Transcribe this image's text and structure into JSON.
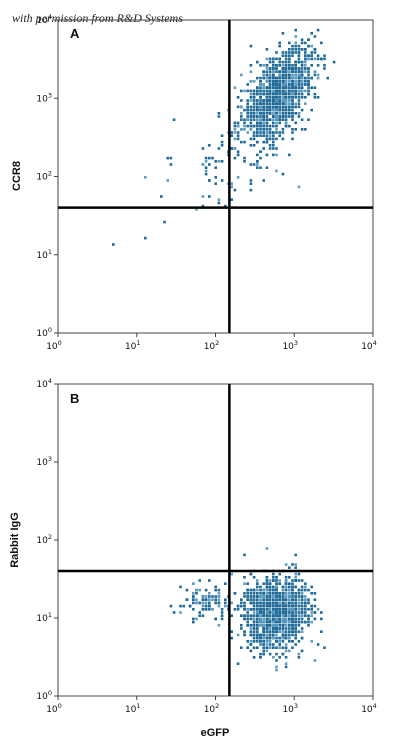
{
  "watermark": "with permission from R&D Systems",
  "colors": {
    "dot": "#1f6a96",
    "dot_light": "#5f9cc0",
    "frame": "#444444",
    "gate": "#000000"
  },
  "chart_data": [
    {
      "type": "scatter",
      "panel": "A",
      "xlabel": "",
      "ylabel": "CCR8",
      "xscale": "log",
      "yscale": "log",
      "xlim": [
        1,
        10000
      ],
      "ylim": [
        1,
        10000
      ],
      "gate": {
        "x": 150,
        "y": 40
      },
      "x_ticks": [
        {
          "base": "10",
          "exp": "0"
        },
        {
          "base": "10",
          "exp": "1"
        },
        {
          "base": "10",
          "exp": "2"
        },
        {
          "base": "10",
          "exp": "3"
        },
        {
          "base": "10",
          "exp": "4"
        }
      ],
      "y_ticks": [
        {
          "base": "10",
          "exp": "0"
        },
        {
          "base": "10",
          "exp": "1"
        },
        {
          "base": "10",
          "exp": "2"
        },
        {
          "base": "10",
          "exp": "3"
        },
        {
          "base": "10",
          "exp": "4"
        }
      ],
      "populations": [
        {
          "cx": 600,
          "cy": 1200,
          "sx_log": 0.22,
          "sy_log": 0.28,
          "rho": 0.55,
          "n": 1300
        },
        {
          "cx": 150,
          "cy": 150,
          "sx_log": 0.45,
          "sy_log": 0.35,
          "rho": 0.5,
          "n": 90
        }
      ]
    },
    {
      "type": "scatter",
      "panel": "B",
      "xlabel": "eGFP",
      "ylabel": "Rabbit IgG",
      "xscale": "log",
      "yscale": "log",
      "xlim": [
        1,
        10000
      ],
      "ylim": [
        1,
        10000
      ],
      "gate": {
        "x": 150,
        "y": 40
      },
      "x_ticks": [
        {
          "base": "10",
          "exp": "0"
        },
        {
          "base": "10",
          "exp": "1"
        },
        {
          "base": "10",
          "exp": "2"
        },
        {
          "base": "10",
          "exp": "3"
        },
        {
          "base": "10",
          "exp": "4"
        }
      ],
      "y_ticks": [
        {
          "base": "10",
          "exp": "0"
        },
        {
          "base": "10",
          "exp": "1"
        },
        {
          "base": "10",
          "exp": "2"
        },
        {
          "base": "10",
          "exp": "3"
        },
        {
          "base": "10",
          "exp": "4"
        }
      ],
      "populations": [
        {
          "cx": 550,
          "cy": 12,
          "sx_log": 0.2,
          "sy_log": 0.22,
          "rho": 0.1,
          "n": 1300
        },
        {
          "cx": 80,
          "cy": 16,
          "sx_log": 0.18,
          "sy_log": 0.12,
          "rho": 0.0,
          "n": 110
        }
      ]
    }
  ]
}
